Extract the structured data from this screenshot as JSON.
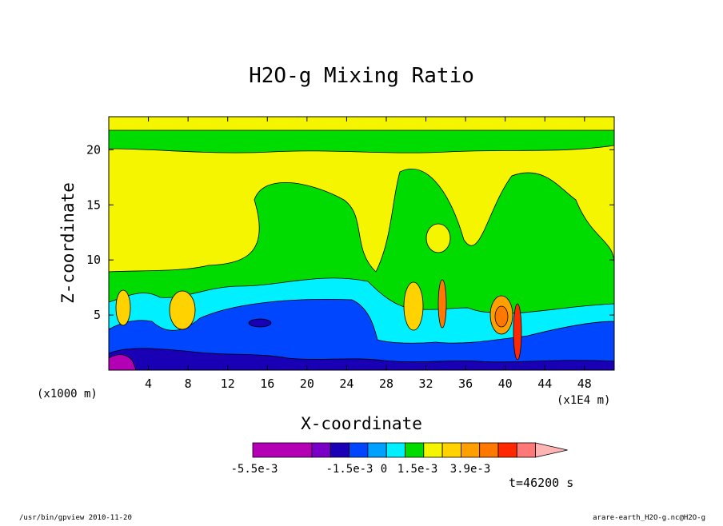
{
  "chart_data": {
    "type": "heatmap",
    "title": "H2O-g Mixing Ratio",
    "xlabel": "X-coordinate",
    "ylabel": "Z-coordinate",
    "x_unit_left": "(x1000 m)",
    "x_unit_right": "(x1E4 m)",
    "x_ticks": [
      "4",
      "8",
      "12",
      "16",
      "20",
      "24",
      "28",
      "32",
      "36",
      "40",
      "44",
      "48"
    ],
    "y_ticks": [
      "5",
      "10",
      "15",
      "20"
    ],
    "xlim": [
      0,
      51
    ],
    "ylim": [
      0,
      23
    ],
    "colorbar": {
      "colors": [
        "#b400b4",
        "#7a00c8",
        "#1a00b4",
        "#0046ff",
        "#00a0ff",
        "#00f0ff",
        "#00dc00",
        "#f5f500",
        "#ffd200",
        "#ffa000",
        "#ff7800",
        "#ff2800",
        "#ff7878",
        "#ffb4b4"
      ],
      "labels": [
        "-5.5e-3",
        "-1.5e-3",
        "0",
        "1.5e-3",
        "3.9e-3"
      ]
    },
    "time_label": "t=46200 s"
  },
  "footer": {
    "left": "/usr/bin/gpview   2010-11-20",
    "right": "arare-earth_H2O-g.nc@H2O-g"
  }
}
